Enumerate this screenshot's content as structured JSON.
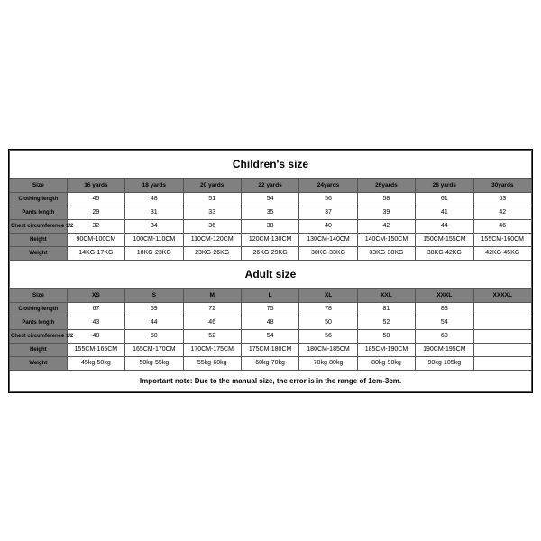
{
  "children": {
    "title": "Children's size",
    "headers": [
      "Size",
      "16 yards",
      "18 yards",
      "20 yards",
      "22 yards",
      "24yards",
      "26yards",
      "28 yards",
      "30yards"
    ],
    "rows": [
      {
        "label": "Clothing length",
        "cells": [
          "45",
          "48",
          "51",
          "54",
          "56",
          "58",
          "61",
          "63"
        ]
      },
      {
        "label": "Pants length",
        "cells": [
          "29",
          "31",
          "33",
          "35",
          "37",
          "39",
          "41",
          "42"
        ]
      },
      {
        "label": "Chest circumference 1/2",
        "cells": [
          "32",
          "34",
          "36",
          "38",
          "40",
          "42",
          "44",
          "46"
        ]
      },
      {
        "label": "Height",
        "cells": [
          "90CM-100CM",
          "100CM-110CM",
          "110CM-120CM",
          "120CM-130CM",
          "130CM-140CM",
          "140CM-150CM",
          "150CM-155CM",
          "155CM-160CM"
        ]
      },
      {
        "label": "Weight",
        "cells": [
          "14KG-17KG",
          "18KG-23KG",
          "23KG-26KG",
          "26KG-29KG",
          "30KG-33KG",
          "33KG-38KG",
          "38KG-42KG",
          "42KG-45KG"
        ]
      }
    ]
  },
  "adult": {
    "title": "Adult size",
    "headers": [
      "Size",
      "XS",
      "S",
      "M",
      "L",
      "XL",
      "XXL",
      "XXXL",
      "XXXXL"
    ],
    "rows": [
      {
        "label": "Clothing length",
        "cells": [
          "67",
          "69",
          "72",
          "75",
          "78",
          "81",
          "83",
          ""
        ]
      },
      {
        "label": "Pants length",
        "cells": [
          "43",
          "44",
          "46",
          "48",
          "50",
          "52",
          "54",
          ""
        ]
      },
      {
        "label": "Chest circumference 1/2",
        "cells": [
          "48",
          "50",
          "52",
          "54",
          "56",
          "58",
          "60",
          ""
        ]
      },
      {
        "label": "Height",
        "cells": [
          "155CM-165CM",
          "165CM-170CM",
          "170CM-175CM",
          "175CM-180CM",
          "180CM-185CM",
          "185CM-190CM",
          "190CM-195CM",
          ""
        ]
      },
      {
        "label": "Weight",
        "cells": [
          "45kg-50kg",
          "50kg-55kg",
          "55kg-60kg",
          "60kg-70kg",
          "70kg-80kg",
          "80kg-90kg",
          "90kg-105kg",
          ""
        ]
      }
    ]
  },
  "note": "Important note: Due to the manual size, the error is in the range of 1cm-3cm.",
  "style": {
    "header_bg": "#808080",
    "border_color": "#555555",
    "title_fontsize": 12,
    "cell_fontsize": 7
  }
}
